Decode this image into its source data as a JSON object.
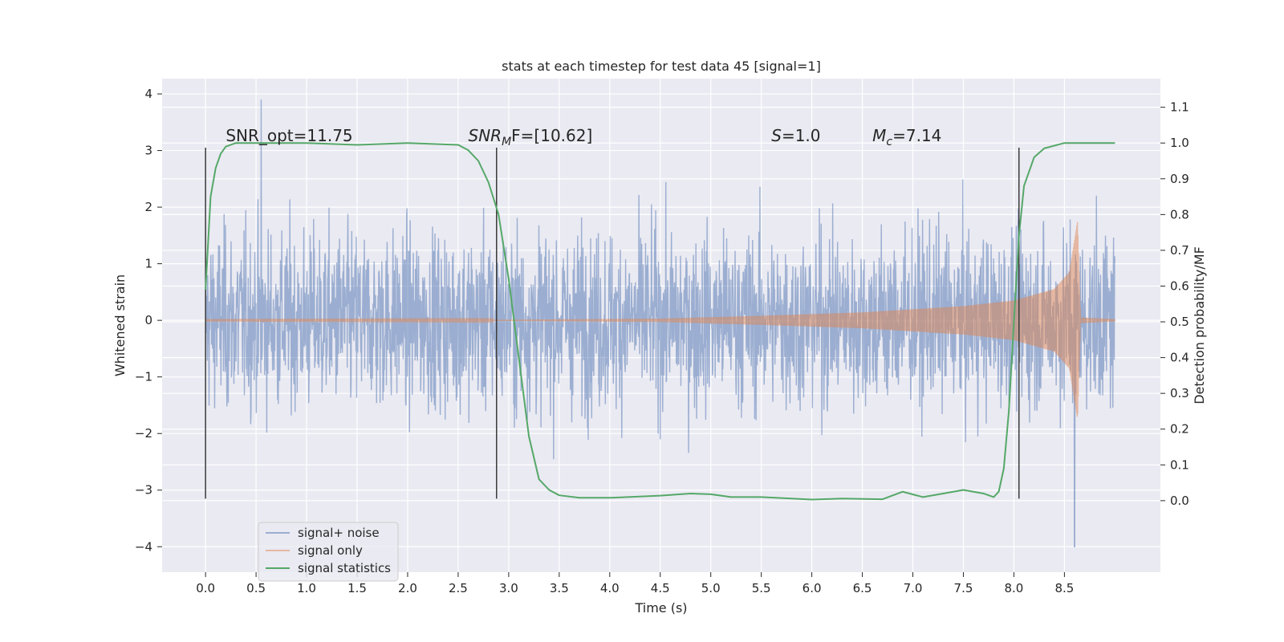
{
  "chart_data": {
    "type": "line",
    "title": "stats at each timestep for test data 45 [signal=1]",
    "xlabel": "Time (s)",
    "ylabel_left": "Whitened strain",
    "ylabel_right": "Detection probability/MF",
    "xlim": [
      -0.43,
      9.45
    ],
    "ylim_left": [
      -4.45,
      4.27
    ],
    "ylim_right": [
      -0.2,
      1.18
    ],
    "x_ticks": [
      0.0,
      0.5,
      1.0,
      1.5,
      2.0,
      2.5,
      3.0,
      3.5,
      4.0,
      4.5,
      5.0,
      5.5,
      6.0,
      6.5,
      7.0,
      7.5,
      8.0,
      8.5
    ],
    "x_tick_labels": [
      "0.0",
      "0.5",
      "1.0",
      "1.5",
      "2.0",
      "2.5",
      "3.0",
      "3.5",
      "4.0",
      "4.5",
      "5.0",
      "5.5",
      "6.0",
      "6.5",
      "7.0",
      "7.5",
      "8.0",
      "8.5"
    ],
    "y_left_ticks": [
      -4,
      -3,
      -2,
      -1,
      0,
      1,
      2,
      3,
      4
    ],
    "y_left_tick_labels": [
      "−4",
      "−3",
      "−2",
      "−1",
      "0",
      "1",
      "2",
      "3",
      "4"
    ],
    "y_right_ticks": [
      0.0,
      0.1,
      0.2,
      0.3,
      0.4,
      0.5,
      0.6,
      0.7,
      0.8,
      0.9,
      1.0,
      1.1
    ],
    "y_right_tick_labels": [
      "0.0",
      "0.1",
      "0.2",
      "0.3",
      "0.4",
      "0.5",
      "0.6",
      "0.7",
      "0.8",
      "0.9",
      "1.0",
      "1.1"
    ],
    "grid": true,
    "legend_position": "lower-left",
    "series": [
      {
        "name": "signal+ noise",
        "axis": "left",
        "color": "#4c72b0",
        "alpha": 0.5,
        "description_values": "whitened noisy strain, dense oscillation roughly within ±2.5, extremes about 3.9 at t≈0.55 and −4.0 at t≈8.6",
        "x_range": [
          0.0,
          9.0
        ],
        "envelope_typical": 2.3,
        "envelope_max": 3.9,
        "envelope_min": -4.0
      },
      {
        "name": "signal only",
        "axis": "left",
        "color": "#dd8452",
        "alpha": 0.5,
        "description_values": "chirp signal amplitude growing from ~0 to ~0.4 near t=8.4, peaking at ~1.75 / −1.5 around t=8.63, then ringdown to 0",
        "amplitude_points": [
          [
            0.0,
            0.005
          ],
          [
            3.0,
            0.01
          ],
          [
            4.5,
            0.03
          ],
          [
            5.5,
            0.08
          ],
          [
            6.5,
            0.14
          ],
          [
            7.5,
            0.25
          ],
          [
            8.0,
            0.35
          ],
          [
            8.4,
            0.55
          ],
          [
            8.55,
            0.85
          ],
          [
            8.63,
            1.75
          ],
          [
            8.66,
            0.05
          ],
          [
            9.0,
            0.02
          ]
        ]
      },
      {
        "name": "signal statistics",
        "axis": "right",
        "color": "#55a868",
        "x": [
          0.0,
          0.05,
          0.1,
          0.15,
          0.2,
          0.3,
          0.5,
          1.0,
          1.5,
          2.0,
          2.5,
          2.6,
          2.7,
          2.8,
          2.9,
          3.0,
          3.1,
          3.2,
          3.3,
          3.4,
          3.5,
          3.7,
          4.0,
          4.5,
          4.8,
          5.0,
          5.2,
          5.5,
          6.0,
          6.3,
          6.7,
          6.9,
          7.1,
          7.3,
          7.5,
          7.7,
          7.8,
          7.85,
          7.9,
          7.95,
          8.0,
          8.05,
          8.1,
          8.2,
          8.3,
          8.5,
          8.8,
          9.0
        ],
        "y": [
          0.59,
          0.85,
          0.93,
          0.97,
          0.99,
          1.0,
          1.0,
          1.0,
          0.995,
          1.0,
          0.995,
          0.98,
          0.95,
          0.89,
          0.8,
          0.62,
          0.4,
          0.18,
          0.06,
          0.03,
          0.015,
          0.008,
          0.008,
          0.014,
          0.02,
          0.018,
          0.01,
          0.01,
          0.003,
          0.006,
          0.004,
          0.025,
          0.01,
          0.02,
          0.03,
          0.02,
          0.01,
          0.025,
          0.09,
          0.25,
          0.5,
          0.74,
          0.88,
          0.96,
          0.985,
          1.0,
          1.0,
          1.0
        ]
      }
    ],
    "vertical_markers": [
      {
        "x": 0.0,
        "y_top": 3.05,
        "y_bottom": -3.15
      },
      {
        "x": 2.88,
        "y_top": 3.05,
        "y_bottom": -3.15
      },
      {
        "x": 8.05,
        "y_top": 3.05,
        "y_bottom": -3.15
      }
    ],
    "annotations": [
      {
        "name": "snr-opt",
        "text": "SNR_opt=11.75",
        "x": 0.2,
        "y": 3.05
      },
      {
        "name": "snr-mf",
        "text_main": "SNR",
        "text_sub": "M",
        "text_tail": "F=[10.62]",
        "x": 2.6,
        "y": 3.05
      },
      {
        "name": "s-value",
        "text_main": "S",
        "text_tail": "=1.0",
        "x": 5.6,
        "y": 3.05
      },
      {
        "name": "mc-value",
        "text_main": "M",
        "text_sub": "c",
        "text_tail": "=7.14",
        "x": 6.6,
        "y": 3.05
      }
    ]
  }
}
